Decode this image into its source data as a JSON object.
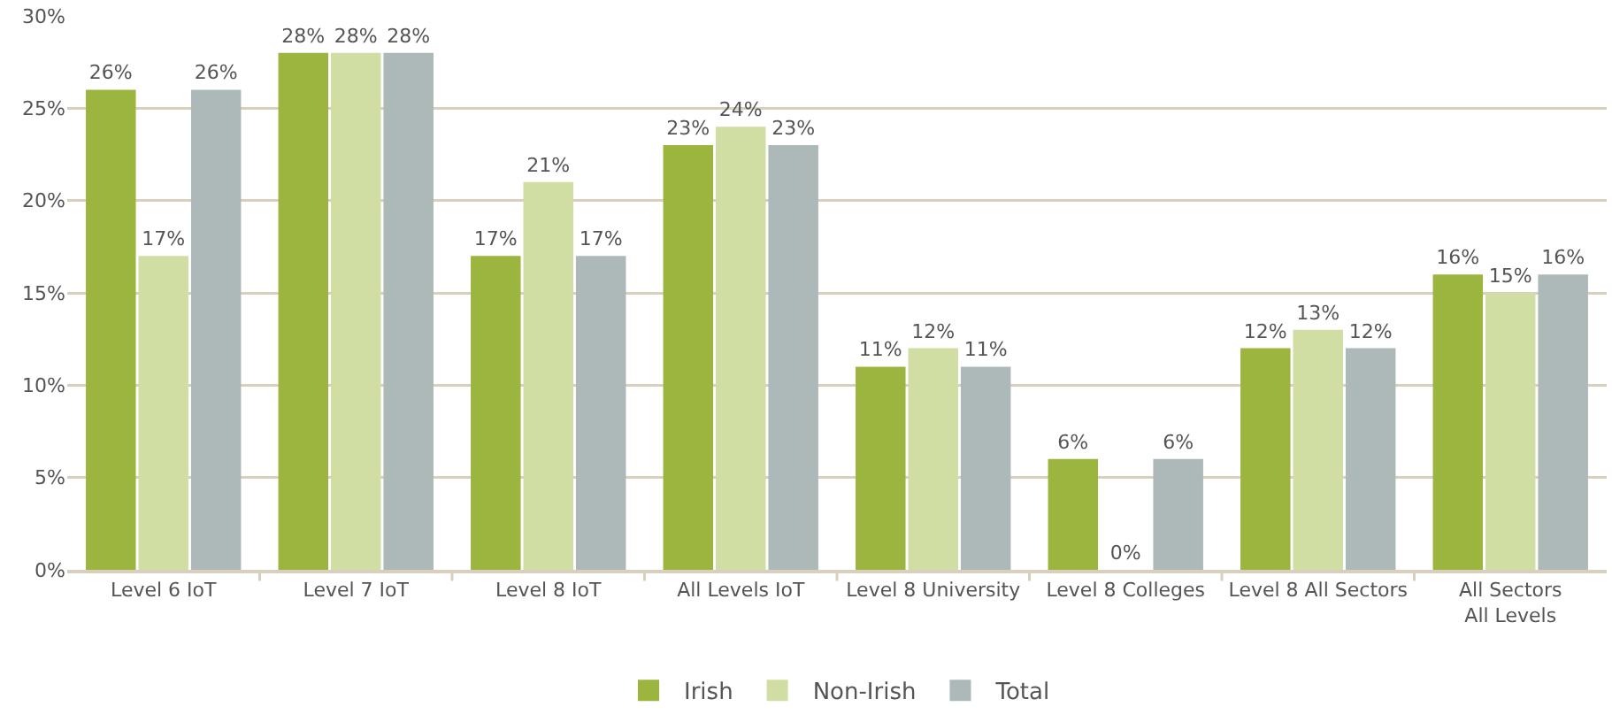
{
  "chart_data": {
    "type": "bar",
    "categories": [
      "Level 6 IoT",
      "Level 7 IoT",
      "Level 8 IoT",
      "All Levels IoT",
      "Level 8 University",
      "Level 8 Colleges",
      "Level 8 All Sectors",
      "All Sectors\nAll Levels"
    ],
    "series": [
      {
        "name": "Irish",
        "color": "#9bb53f",
        "values": [
          26,
          28,
          17,
          23,
          11,
          6,
          12,
          16
        ],
        "value_labels": [
          "26%",
          "28%",
          "17%",
          "23%",
          "11%",
          "6%",
          "12%",
          "16%"
        ]
      },
      {
        "name": "Non-Irish",
        "color": "#d1dea3",
        "values": [
          17,
          28,
          21,
          24,
          12,
          0,
          13,
          15
        ],
        "value_labels": [
          "17%",
          "28%",
          "21%",
          "24%",
          "12%",
          "0%",
          "13%",
          "15%"
        ]
      },
      {
        "name": "Total",
        "color": "#adb8b8",
        "values": [
          26,
          28,
          17,
          23,
          11,
          6,
          12,
          16
        ],
        "value_labels": [
          "26%",
          "28%",
          "17%",
          "23%",
          "11%",
          "6%",
          "12%",
          "16%"
        ]
      }
    ],
    "ylim": [
      0,
      30
    ],
    "yticks": [
      {
        "value": 0,
        "label": "0%"
      },
      {
        "value": 5,
        "label": "5%"
      },
      {
        "value": 10,
        "label": "10%"
      },
      {
        "value": 15,
        "label": "15%"
      },
      {
        "value": 20,
        "label": "20%"
      },
      {
        "value": 25,
        "label": "25%"
      },
      {
        "value": 30,
        "label": "30%"
      }
    ],
    "grid": "y",
    "legend": "bottom"
  }
}
